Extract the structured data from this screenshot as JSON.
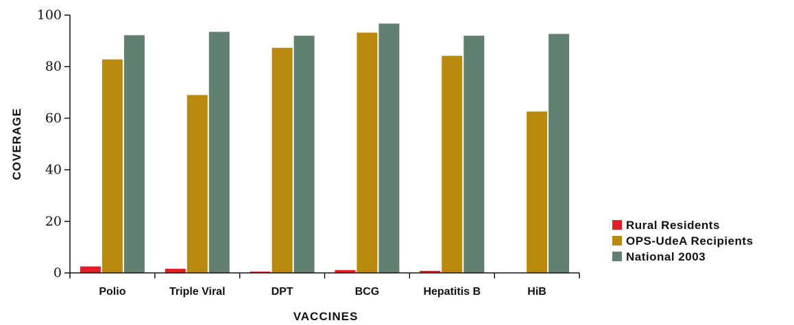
{
  "chart_data": {
    "type": "bar",
    "categories": [
      "Polio",
      "Triple Viral",
      "DPT",
      "BCG",
      "Hepatitis B",
      "HiB"
    ],
    "series": [
      {
        "name": "Rural Residents",
        "color": "#e31f26",
        "values": [
          2.5,
          1.6,
          0.5,
          1.1,
          0.8,
          0
        ]
      },
      {
        "name": "OPS-UdeA Recipients",
        "color": "#b8890b",
        "values": [
          82.8,
          69.0,
          87.3,
          93.2,
          84.2,
          62.6
        ]
      },
      {
        "name": "National 2003",
        "color": "#628070",
        "values": [
          92.2,
          93.5,
          92.0,
          96.7,
          92.0,
          92.7
        ]
      }
    ],
    "xlabel": "VACCINES",
    "ylabel": "COVERAGE",
    "ylim": [
      0,
      100
    ],
    "yticks": [
      0,
      20,
      40,
      60,
      80,
      100
    ],
    "grid": false,
    "legend_position": "bottom-right"
  }
}
